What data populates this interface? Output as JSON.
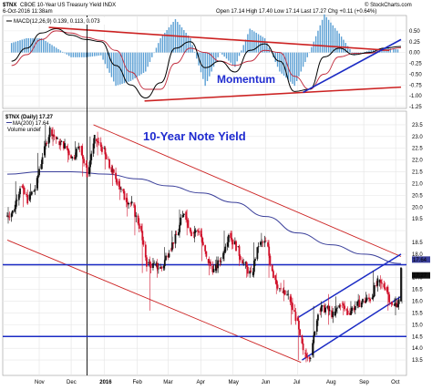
{
  "header": {
    "symbol": "$TNX",
    "description": "CBOE 10-Year US Treasury Yield INDX",
    "date": "6-Oct-2016 11:38am",
    "ohlc": "Open 17.14  High 17.40  Low 17.14  Last 17.27  Chg +0.11 (+0.64%)",
    "watermark": "© StockCharts.com"
  },
  "macd_legend": "MACD(12,26,9) 0.139, 0.113, 0.073",
  "price_legend": {
    "line1": "$TNX (Daily) 17.27",
    "line2": "MA(200) 17.64",
    "line3": "Volume undef"
  },
  "annotations": {
    "momentum": "Momentum",
    "yield": "10-Year Note Yield"
  },
  "colors": {
    "up_candle": "#111111",
    "down_candle": "#d0102a",
    "ma200": "#3a3f9a",
    "macd": "#000000",
    "signal": "#c0283a",
    "histogram": "#5a9fd4",
    "trend_red": "#cc2222",
    "trend_blue": "#1b2bc4",
    "annotation": "#1f2bd0"
  },
  "chart_data": [
    {
      "type": "line",
      "panel": "MACD",
      "x": [
        "2015-10-06",
        "2015-10-20",
        "2015-11-03",
        "2015-11-17",
        "2015-12-01",
        "2015-12-15",
        "2015-12-29",
        "2016-01-12",
        "2016-01-26",
        "2016-02-09",
        "2016-02-23",
        "2016-03-08",
        "2016-03-22",
        "2016-04-05",
        "2016-04-19",
        "2016-05-03",
        "2016-05-17",
        "2016-05-31",
        "2016-06-14",
        "2016-06-28",
        "2016-07-12",
        "2016-07-26",
        "2016-08-09",
        "2016-08-23",
        "2016-09-06",
        "2016-09-20",
        "2016-10-06"
      ],
      "series": [
        {
          "values": [
            -0.2,
            0.1,
            0.45,
            0.55,
            0.4,
            0.3,
            0.25,
            -0.3,
            -0.75,
            -1.05,
            -0.7,
            0.1,
            0.25,
            -0.35,
            -0.2,
            -0.45,
            0.05,
            0.2,
            -0.2,
            -0.9,
            -0.85,
            -0.1,
            0.1,
            -0.05,
            0.0,
            0.1,
            0.14
          ]
        },
        {
          "values": [
            -0.3,
            -0.05,
            0.3,
            0.5,
            0.45,
            0.35,
            0.28,
            0.05,
            -0.45,
            -0.85,
            -0.85,
            -0.25,
            0.1,
            0.0,
            -0.2,
            -0.3,
            -0.2,
            0.05,
            0.0,
            -0.55,
            -0.85,
            -0.5,
            -0.1,
            -0.02,
            -0.02,
            0.05,
            0.11
          ]
        }
      ],
      "ylim": [
        -1.25,
        0.75
      ],
      "yticks": [
        0.5,
        0.25,
        0.0,
        -0.25,
        -0.5,
        -0.75,
        -1.0,
        -1.25
      ]
    },
    {
      "type": "candlestick",
      "panel": "price",
      "points": [
        {
          "d": "2015-10-02",
          "o": 19.6,
          "h": 20.0,
          "l": 19.3,
          "c": 19.8
        },
        {
          "d": "2015-10-09",
          "o": 19.8,
          "h": 21.1,
          "l": 19.7,
          "c": 20.9
        },
        {
          "d": "2015-10-16",
          "o": 20.9,
          "h": 21.0,
          "l": 20.0,
          "c": 20.3
        },
        {
          "d": "2015-10-23",
          "o": 20.3,
          "h": 21.0,
          "l": 20.2,
          "c": 20.8
        },
        {
          "d": "2015-10-30",
          "o": 20.8,
          "h": 22.3,
          "l": 20.7,
          "c": 22.2
        },
        {
          "d": "2015-11-06",
          "o": 22.2,
          "h": 23.5,
          "l": 22.1,
          "c": 23.3
        },
        {
          "d": "2015-11-13",
          "o": 23.3,
          "h": 23.4,
          "l": 22.6,
          "c": 22.8
        },
        {
          "d": "2015-11-20",
          "o": 22.8,
          "h": 22.9,
          "l": 22.4,
          "c": 22.6
        },
        {
          "d": "2015-11-27",
          "o": 22.6,
          "h": 22.7,
          "l": 21.9,
          "c": 22.1
        },
        {
          "d": "2015-12-04",
          "o": 22.1,
          "h": 22.8,
          "l": 22.0,
          "c": 22.6
        },
        {
          "d": "2015-12-11",
          "o": 22.6,
          "h": 22.7,
          "l": 21.3,
          "c": 21.4
        },
        {
          "d": "2015-12-18",
          "o": 21.4,
          "h": 23.0,
          "l": 21.3,
          "c": 22.9
        },
        {
          "d": "2015-12-25",
          "o": 22.9,
          "h": 23.2,
          "l": 22.2,
          "c": 22.5
        },
        {
          "d": "2016-01-01",
          "o": 22.5,
          "h": 22.6,
          "l": 21.6,
          "c": 21.7
        },
        {
          "d": "2016-01-08",
          "o": 21.7,
          "h": 21.8,
          "l": 20.9,
          "c": 21.1
        },
        {
          "d": "2016-01-15",
          "o": 21.1,
          "h": 21.2,
          "l": 20.3,
          "c": 20.4
        },
        {
          "d": "2016-01-22",
          "o": 20.4,
          "h": 20.6,
          "l": 19.6,
          "c": 20.1
        },
        {
          "d": "2016-01-29",
          "o": 20.1,
          "h": 20.2,
          "l": 18.8,
          "c": 19.2
        },
        {
          "d": "2016-02-05",
          "o": 19.2,
          "h": 19.3,
          "l": 17.2,
          "c": 17.6
        },
        {
          "d": "2016-02-12",
          "o": 17.6,
          "h": 17.9,
          "l": 15.6,
          "c": 17.5
        },
        {
          "d": "2016-02-19",
          "o": 17.5,
          "h": 17.8,
          "l": 17.0,
          "c": 17.4
        },
        {
          "d": "2016-02-26",
          "o": 17.4,
          "h": 18.3,
          "l": 17.3,
          "c": 18.2
        },
        {
          "d": "2016-03-04",
          "o": 18.2,
          "h": 19.0,
          "l": 18.1,
          "c": 18.8
        },
        {
          "d": "2016-03-11",
          "o": 18.8,
          "h": 19.9,
          "l": 18.7,
          "c": 19.8
        },
        {
          "d": "2016-03-18",
          "o": 19.8,
          "h": 19.9,
          "l": 18.8,
          "c": 18.9
        },
        {
          "d": "2016-03-25",
          "o": 18.9,
          "h": 19.2,
          "l": 18.5,
          "c": 19.0
        },
        {
          "d": "2016-04-01",
          "o": 19.0,
          "h": 19.1,
          "l": 17.7,
          "c": 17.8
        },
        {
          "d": "2016-04-08",
          "o": 17.8,
          "h": 17.9,
          "l": 17.1,
          "c": 17.3
        },
        {
          "d": "2016-04-15",
          "o": 17.3,
          "h": 17.9,
          "l": 17.2,
          "c": 17.8
        },
        {
          "d": "2016-04-22",
          "o": 17.8,
          "h": 19.0,
          "l": 17.7,
          "c": 18.9
        },
        {
          "d": "2016-04-29",
          "o": 18.9,
          "h": 19.0,
          "l": 18.2,
          "c": 18.3
        },
        {
          "d": "2016-05-06",
          "o": 18.3,
          "h": 18.4,
          "l": 17.5,
          "c": 17.6
        },
        {
          "d": "2016-05-13",
          "o": 17.6,
          "h": 17.7,
          "l": 17.0,
          "c": 17.1
        },
        {
          "d": "2016-05-20",
          "o": 17.1,
          "h": 18.5,
          "l": 17.0,
          "c": 18.4
        },
        {
          "d": "2016-05-27",
          "o": 18.4,
          "h": 18.9,
          "l": 18.3,
          "c": 18.5
        },
        {
          "d": "2016-06-03",
          "o": 18.5,
          "h": 18.6,
          "l": 17.0,
          "c": 17.1
        },
        {
          "d": "2016-06-10",
          "o": 17.1,
          "h": 17.2,
          "l": 16.3,
          "c": 16.4
        },
        {
          "d": "2016-06-17",
          "o": 16.4,
          "h": 16.9,
          "l": 16.0,
          "c": 16.2
        },
        {
          "d": "2016-06-24",
          "o": 16.2,
          "h": 16.3,
          "l": 15.0,
          "c": 15.3
        },
        {
          "d": "2016-07-01",
          "o": 15.3,
          "h": 15.4,
          "l": 13.5,
          "c": 13.8
        },
        {
          "d": "2016-07-08",
          "o": 13.8,
          "h": 14.0,
          "l": 13.4,
          "c": 13.7
        },
        {
          "d": "2016-07-15",
          "o": 13.7,
          "h": 15.8,
          "l": 13.6,
          "c": 15.6
        },
        {
          "d": "2016-07-22",
          "o": 15.6,
          "h": 16.0,
          "l": 15.3,
          "c": 15.7
        },
        {
          "d": "2016-07-29",
          "o": 15.7,
          "h": 16.3,
          "l": 15.0,
          "c": 15.4
        },
        {
          "d": "2016-08-05",
          "o": 15.4,
          "h": 16.2,
          "l": 15.3,
          "c": 15.9
        },
        {
          "d": "2016-08-12",
          "o": 15.9,
          "h": 16.0,
          "l": 15.4,
          "c": 15.5
        },
        {
          "d": "2016-08-19",
          "o": 15.5,
          "h": 16.0,
          "l": 15.4,
          "c": 15.8
        },
        {
          "d": "2016-08-26",
          "o": 15.8,
          "h": 16.3,
          "l": 15.7,
          "c": 16.0
        },
        {
          "d": "2016-09-02",
          "o": 16.0,
          "h": 16.4,
          "l": 15.9,
          "c": 16.1
        },
        {
          "d": "2016-09-09",
          "o": 16.1,
          "h": 17.3,
          "l": 16.0,
          "c": 16.8
        },
        {
          "d": "2016-09-16",
          "o": 16.8,
          "h": 17.1,
          "l": 16.5,
          "c": 16.6
        },
        {
          "d": "2016-09-23",
          "o": 16.6,
          "h": 16.7,
          "l": 15.6,
          "c": 15.8
        },
        {
          "d": "2016-09-30",
          "o": 15.8,
          "h": 16.2,
          "l": 15.4,
          "c": 16.0
        },
        {
          "d": "2016-10-06",
          "o": 16.0,
          "h": 17.4,
          "l": 15.9,
          "c": 17.3
        }
      ],
      "ma200": [
        {
          "d": "2015-10-02",
          "v": 21.4
        },
        {
          "d": "2015-11-02",
          "v": 21.5
        },
        {
          "d": "2015-12-01",
          "v": 21.5
        },
        {
          "d": "2016-01-04",
          "v": 21.4
        },
        {
          "d": "2016-02-01",
          "v": 21.2
        },
        {
          "d": "2016-03-01",
          "v": 20.9
        },
        {
          "d": "2016-04-01",
          "v": 20.6
        },
        {
          "d": "2016-05-02",
          "v": 20.2
        },
        {
          "d": "2016-06-01",
          "v": 19.6
        },
        {
          "d": "2016-07-01",
          "v": 18.9
        },
        {
          "d": "2016-08-01",
          "v": 18.4
        },
        {
          "d": "2016-09-01",
          "v": 18.0
        },
        {
          "d": "2016-10-06",
          "v": 17.6
        }
      ],
      "ylim": [
        13.0,
        24.0
      ],
      "yticks": [
        23.5,
        23.0,
        22.5,
        22.0,
        21.5,
        21.0,
        20.5,
        20.0,
        19.5,
        19.0,
        18.5,
        18.0,
        17.5,
        17.0,
        16.5,
        16.0,
        15.5,
        15.0,
        14.5,
        14.0,
        13.5
      ],
      "ylabels": [
        "23.5",
        "23.0",
        "22.5",
        "22.0",
        "21.5",
        "21.0",
        "20.5",
        "20.0",
        "19.5",
        "18.5",
        "18.0",
        "17.0",
        "16.5",
        "16.0",
        "15.5",
        "15.0",
        "14.5",
        "14.0",
        "13.5"
      ],
      "current_price_label": "17.27",
      "ma_label": "17.64",
      "xlabels": [
        {
          "d": "2015-11-01",
          "t": "Nov"
        },
        {
          "d": "2015-12-01",
          "t": "Dec"
        },
        {
          "d": "2016-01-01",
          "t": "2016"
        },
        {
          "d": "2016-02-01",
          "t": "Feb"
        },
        {
          "d": "2016-03-01",
          "t": "Mar"
        },
        {
          "d": "2016-04-01",
          "t": "Apr"
        },
        {
          "d": "2016-05-01",
          "t": "May"
        },
        {
          "d": "2016-06-01",
          "t": "Jun"
        },
        {
          "d": "2016-07-01",
          "t": "Jul"
        },
        {
          "d": "2016-08-01",
          "t": "Aug"
        },
        {
          "d": "2016-09-01",
          "t": "Sep"
        },
        {
          "d": "2016-10-01",
          "t": "Oct"
        }
      ],
      "horizontal_lines": [
        17.55,
        14.5
      ],
      "trendlines_red": [
        {
          "from": {
            "d": "2015-12-22",
            "v": 23.5
          },
          "to": {
            "d": "2016-10-06",
            "v": 17.9
          }
        },
        {
          "from": {
            "d": "2015-10-02",
            "v": 18.6
          },
          "to": {
            "d": "2016-07-04",
            "v": 13.4
          }
        }
      ],
      "trendlines_blue": [
        {
          "from": {
            "d": "2016-07-05",
            "v": 13.5
          },
          "to": {
            "d": "2016-10-06",
            "v": 16.2
          }
        },
        {
          "from": {
            "d": "2016-07-01",
            "v": 15.3
          },
          "to": {
            "d": "2016-10-06",
            "v": 18.0
          }
        }
      ],
      "vertical_line_date": "2015-12-16"
    }
  ],
  "macd_trendlines": {
    "red_upper": {
      "from": {
        "d": "2015-11-10",
        "v": 0.58
      },
      "to": {
        "d": "2016-09-25",
        "v": 0.05
      }
    },
    "red_lower": {
      "from": {
        "d": "2016-02-08",
        "v": -1.12
      },
      "to": {
        "d": "2016-10-06",
        "v": -0.8
      }
    },
    "blue": {
      "from": {
        "d": "2016-07-06",
        "v": -0.92
      },
      "to": {
        "d": "2016-10-06",
        "v": 0.3
      }
    }
  },
  "macd_ylabels": [
    "0.50",
    "0.25",
    "0.00",
    "-0.25",
    "-0.50",
    "-0.75",
    "-1.00",
    "-1.25"
  ]
}
